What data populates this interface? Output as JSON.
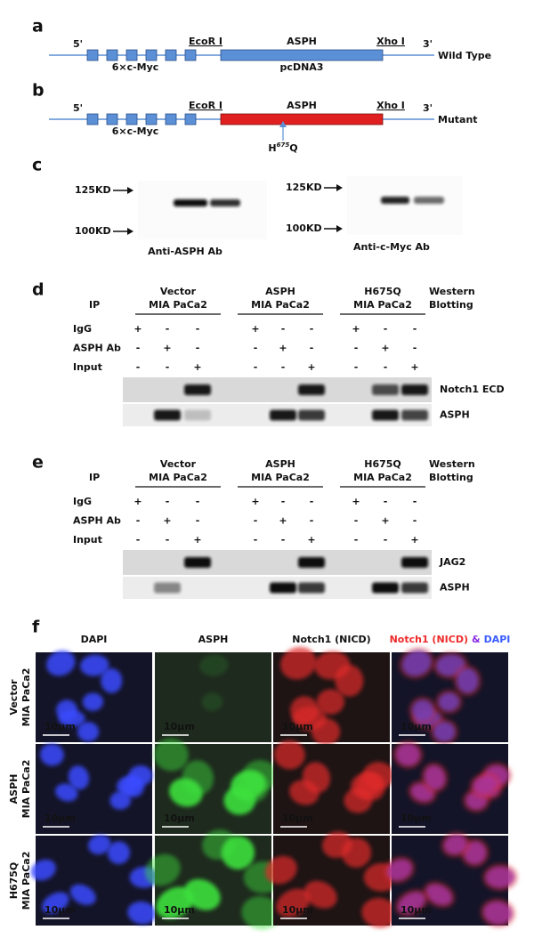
{
  "panel_a": {
    "letter": "a",
    "five_prime": "5'",
    "ecor": "EcoR I",
    "gene": "ASPH",
    "xho": "Xho I",
    "three_prime": "3'",
    "tag": "6×c-Myc",
    "vector": "pcDNA3",
    "variant": "Wild Type"
  },
  "panel_b": {
    "letter": "b",
    "five_prime": "5'",
    "ecor": "EcoR I",
    "gene": "ASPH",
    "xho": "Xho I",
    "three_prime": "3'",
    "tag": "6×c-Myc",
    "mutation": {
      "prefix": "H",
      "position": "675",
      "suffix": "Q"
    },
    "variant": "Mutant"
  },
  "panel_c": {
    "letter": "c",
    "blots": [
      {
        "marker_high": "125KD",
        "marker_low": "100KD",
        "antibody": "Anti-ASPH Ab"
      },
      {
        "marker_high": "125KD",
        "marker_low": "100KD",
        "antibody": "Anti-c-Myc Ab"
      }
    ]
  },
  "panel_d": {
    "letter": "d",
    "ip": "IP",
    "groups": [
      [
        "Vector",
        "MIA PaCa2"
      ],
      [
        "ASPH",
        "MIA PaCa2"
      ],
      [
        "H675Q",
        "MIA PaCa2"
      ]
    ],
    "method": [
      "Western",
      "Blotting"
    ],
    "rows": [
      {
        "label": "IgG",
        "signs": [
          "+",
          "-",
          "-",
          "+",
          "-",
          "-",
          "+",
          "-",
          "-"
        ]
      },
      {
        "label": "ASPH Ab",
        "signs": [
          "-",
          "+",
          "-",
          "-",
          "+",
          "-",
          "-",
          "+",
          "-"
        ]
      },
      {
        "label": "Input",
        "signs": [
          "-",
          "-",
          "+",
          "-",
          "-",
          "+",
          "-",
          "-",
          "+"
        ]
      }
    ],
    "blots": [
      "Notch1 ECD",
      "ASPH"
    ]
  },
  "panel_e": {
    "letter": "e",
    "ip": "IP",
    "groups": [
      [
        "Vector",
        "MIA PaCa2"
      ],
      [
        "ASPH",
        "MIA PaCa2"
      ],
      [
        "H675Q",
        "MIA PaCa2"
      ]
    ],
    "method": [
      "Western",
      "Blotting"
    ],
    "rows": [
      {
        "label": "IgG",
        "signs": [
          "+",
          "-",
          "-",
          "+",
          "-",
          "-",
          "+",
          "-",
          "-"
        ]
      },
      {
        "label": "ASPH Ab",
        "signs": [
          "-",
          "+",
          "-",
          "-",
          "+",
          "-",
          "-",
          "+",
          "-"
        ]
      },
      {
        "label": "Input",
        "signs": [
          "-",
          "-",
          "+",
          "-",
          "-",
          "+",
          "-",
          "-",
          "+"
        ]
      }
    ],
    "blots": [
      "JAG2",
      "ASPH"
    ]
  },
  "panel_f": {
    "letter": "f",
    "columns": [
      "DAPI",
      "ASPH",
      "Notch1 (NICD)"
    ],
    "merge": {
      "left": "Notch1 (NICD)",
      "join": "&",
      "right": "DAPI"
    },
    "rows": [
      [
        "Vector",
        "MIA PaCa2"
      ],
      [
        "ASPH",
        "MIA PaCa2"
      ],
      [
        "H675Q",
        "MIA PaCa2"
      ]
    ],
    "scale_bar": "10μm"
  }
}
